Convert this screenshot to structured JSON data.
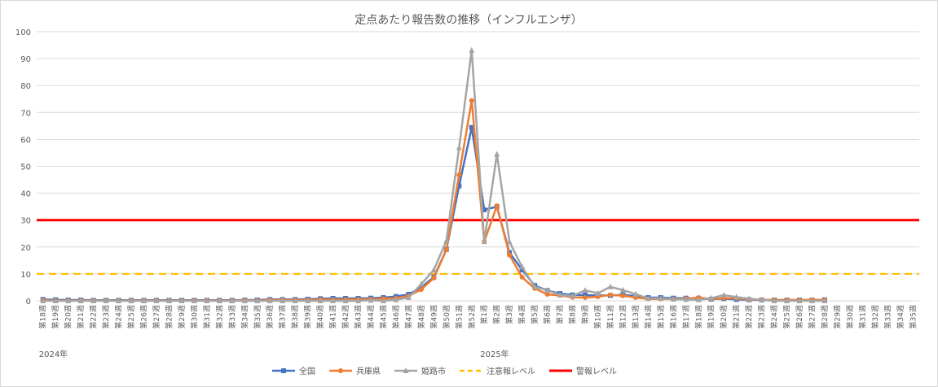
{
  "chart_data": {
    "type": "line",
    "title": "定点あたり報告数の推移（インフルエンザ）",
    "year_labels": [
      {
        "label": "2024年",
        "at_category": "第18週"
      },
      {
        "label": "2025年",
        "at_category": "第1週"
      }
    ],
    "ylim": [
      0,
      100
    ],
    "yticks": [
      0,
      10,
      20,
      30,
      40,
      50,
      60,
      70,
      80,
      90,
      100
    ],
    "grid": true,
    "legend_position": "bottom",
    "categories": [
      "第18週",
      "第19週",
      "第20週",
      "第21週",
      "第22週",
      "第23週",
      "第24週",
      "第25週",
      "第26週",
      "第27週",
      "第28週",
      "第29週",
      "第30週",
      "第31週",
      "第32週",
      "第33週",
      "第34週",
      "第35週",
      "第36週",
      "第37週",
      "第38週",
      "第39週",
      "第40週",
      "第41週",
      "第42週",
      "第43週",
      "第44週",
      "第45週",
      "第46週",
      "第47週",
      "第48週",
      "第49週",
      "第50週",
      "第51週",
      "第52週",
      "第1週",
      "第2週",
      "第3週",
      "第4週",
      "第5週",
      "第6週",
      "第7週",
      "第8週",
      "第9週",
      "第10週",
      "第11週",
      "第12週",
      "第13週",
      "第14週",
      "第15週",
      "第16週",
      "第17週",
      "第18週",
      "第19週",
      "第20週",
      "第21週",
      "第22週",
      "第23週",
      "第24週",
      "第25週",
      "第26週",
      "第27週",
      "第28週",
      "第29週",
      "第30週",
      "第31週",
      "第32週",
      "第33週",
      "第34週",
      "第35週"
    ],
    "series": [
      {
        "name": "全国",
        "color": "#4472c4",
        "marker": "square",
        "values": [
          0.5,
          0.4,
          0.3,
          0.3,
          0.2,
          0.2,
          0.2,
          0.2,
          0.2,
          0.2,
          0.2,
          0.2,
          0.2,
          0.2,
          0.2,
          0.2,
          0.3,
          0.3,
          0.5,
          0.5,
          0.5,
          0.6,
          0.8,
          0.9,
          0.9,
          0.9,
          1.0,
          1.2,
          1.6,
          2.4,
          5.0,
          8.8,
          19.1,
          42.7,
          64.4,
          33.8,
          35.0,
          17.9,
          11.5,
          5.7,
          3.8,
          2.7,
          2.2,
          2.1,
          2.0,
          2.0,
          2.2,
          1.8,
          1.2,
          1.2,
          1.0,
          1.0,
          0.9,
          0.6,
          0.8,
          0.5,
          0.4,
          0.3,
          0.3,
          0.3,
          0.3,
          0.3,
          0.4,
          null,
          null,
          null,
          null,
          null,
          null,
          null
        ]
      },
      {
        "name": "兵庫県",
        "color": "#ed7d31",
        "marker": "circle",
        "values": [
          0.2,
          0.1,
          0.1,
          0.1,
          0.1,
          0.1,
          0.1,
          0.1,
          0.1,
          0.1,
          0.1,
          0.1,
          0.1,
          0.1,
          0.1,
          0.1,
          0.2,
          0.1,
          0.3,
          0.3,
          0.3,
          0.3,
          0.5,
          0.4,
          0.5,
          0.5,
          0.6,
          0.8,
          1.0,
          1.8,
          4.2,
          8.5,
          19.0,
          46.8,
          74.4,
          22.0,
          35.3,
          17.0,
          8.8,
          4.6,
          2.4,
          2.0,
          1.3,
          1.2,
          1.5,
          2.2,
          1.9,
          1.2,
          0.7,
          0.7,
          0.6,
          0.8,
          1.2,
          0.7,
          1.0,
          0.9,
          0.5,
          0.4,
          0.3,
          0.3,
          0.3,
          0.4,
          0.3,
          null,
          null,
          null,
          null,
          null,
          null,
          null
        ]
      },
      {
        "name": "姫路市",
        "color": "#a5a5a5",
        "marker": "triangle",
        "values": [
          0.0,
          0.0,
          0.0,
          0.0,
          0.0,
          0.0,
          0.0,
          0.0,
          0.0,
          0.0,
          0.0,
          0.0,
          0.0,
          0.0,
          0.0,
          0.0,
          0.0,
          0.0,
          0.0,
          0.0,
          0.0,
          0.0,
          0.0,
          0.0,
          0.0,
          0.0,
          0.2,
          0.0,
          0.4,
          1.2,
          6.2,
          11.5,
          22.4,
          56.9,
          93.1,
          22.0,
          54.5,
          21.9,
          12.6,
          5.2,
          3.9,
          2.2,
          1.8,
          3.9,
          2.8,
          5.2,
          4.0,
          2.5,
          0.9,
          0.9,
          0.6,
          0.5,
          0.4,
          1.0,
          2.1,
          1.4,
          0.8,
          0.4,
          0.0,
          0.0,
          0.0,
          0.0,
          0.0,
          null,
          null,
          null,
          null,
          null,
          null,
          null
        ]
      },
      {
        "name": "注意報レベル",
        "color": "#ffc000",
        "dash": true,
        "constant": 10
      },
      {
        "name": "警報レベル",
        "color": "#ff0000",
        "dash": false,
        "constant": 30
      }
    ]
  }
}
